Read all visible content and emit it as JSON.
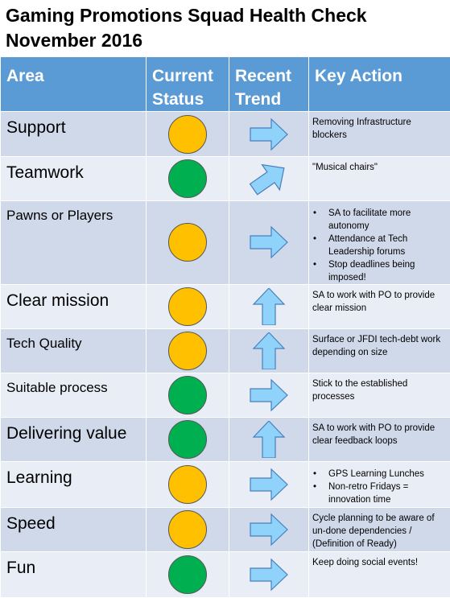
{
  "title_line1": "Gaming Promotions Squad Health Check",
  "title_line2": "November 2016",
  "headers": {
    "area": "Area",
    "status_line1": "Current",
    "status_line2": "Status",
    "trend_line1": "Recent",
    "trend_line2": "Trend",
    "action": "Key Action"
  },
  "colors": {
    "amber": "#ffc000",
    "green": "#00b050",
    "arrow": "#8fd3fb",
    "header": "#5b9bd5"
  },
  "rows": [
    {
      "area": "Support",
      "status": "amber",
      "trend": "right",
      "action": "Removing Infrastructure blockers"
    },
    {
      "area": "Teamwork",
      "status": "green",
      "trend": "up-right",
      "action": "\"Musical chairs\""
    },
    {
      "area": "Pawns or Players",
      "status": "amber",
      "trend": "right",
      "bullets": [
        "SA to facilitate more autonomy",
        "Attendance at Tech Leadership forums",
        "Stop deadlines being imposed!"
      ]
    },
    {
      "area": "Clear mission",
      "status": "amber",
      "trend": "up",
      "action": "SA to work with PO to provide clear mission"
    },
    {
      "area": "Tech Quality",
      "status": "amber",
      "trend": "up",
      "action": "Surface or JFDI tech-debt work depending on size"
    },
    {
      "area": "Suitable process",
      "status": "green",
      "trend": "right",
      "action": "Stick to the established processes"
    },
    {
      "area": "Delivering value",
      "status": "green",
      "trend": "up",
      "action": "SA to work with PO to provide clear feedback loops"
    },
    {
      "area": "Learning",
      "status": "amber",
      "trend": "right",
      "bullets": [
        "GPS Learning Lunches",
        "Non-retro Fridays = innovation time"
      ]
    },
    {
      "area": "Speed",
      "status": "amber",
      "trend": "right",
      "action": "Cycle planning to be aware of un-done dependencies / (Definition of Ready)"
    },
    {
      "area": "Fun",
      "status": "green",
      "trend": "right",
      "action": "Keep doing social events!"
    }
  ]
}
